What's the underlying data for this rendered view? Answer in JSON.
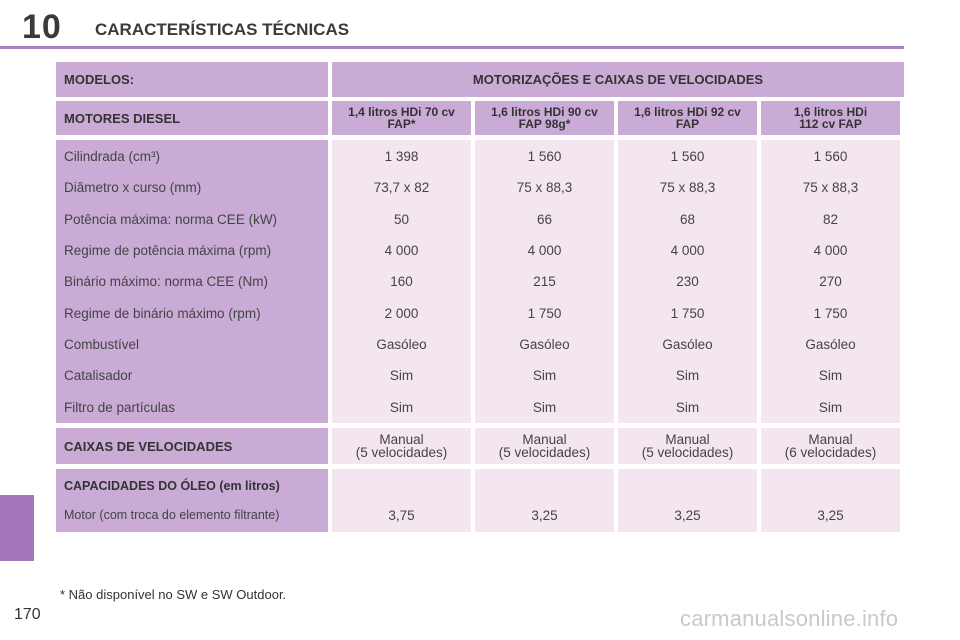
{
  "header": {
    "chapter_number": "10",
    "title": "CARACTERÍSTICAS TÉCNICAS"
  },
  "table": {
    "models_label": "MODELOS:",
    "models_span": "MOTORIZAÇÕES E CAIXAS DE VELOCIDADES",
    "diesel_label": "MOTORES DIESEL",
    "engines": [
      {
        "line1": "1,4 litros HDi 70 cv",
        "line2": "FAP*"
      },
      {
        "line1": "1,6 litros HDi 90 cv",
        "line2": "FAP 98g*"
      },
      {
        "line1": "1,6 litros HDi 92 cv",
        "line2": "FAP"
      },
      {
        "line1": "1,6 litros HDi",
        "line2": "112 cv FAP"
      }
    ],
    "specs": [
      {
        "label": "Cilindrada (cm³)",
        "values": [
          "1 398",
          "1 560",
          "1 560",
          "1 560"
        ]
      },
      {
        "label": "Diâmetro x curso (mm)",
        "values": [
          "73,7 x 82",
          "75 x 88,3",
          "75 x 88,3",
          "75 x 88,3"
        ]
      },
      {
        "label": "Potência máxima: norma CEE (kW)",
        "values": [
          "50",
          "66",
          "68",
          "82"
        ]
      },
      {
        "label": "Regime de potência máxima (rpm)",
        "values": [
          "4 000",
          "4 000",
          "4 000",
          "4 000"
        ]
      },
      {
        "label": "Binário máximo: norma CEE (Nm)",
        "values": [
          "160",
          "215",
          "230",
          "270"
        ]
      },
      {
        "label": "Regime de binário máximo (rpm)",
        "values": [
          "2 000",
          "1 750",
          "1 750",
          "1 750"
        ]
      },
      {
        "label": "Combustível",
        "values": [
          "Gasóleo",
          "Gasóleo",
          "Gasóleo",
          "Gasóleo"
        ]
      },
      {
        "label": "Catalisador",
        "values": [
          "Sim",
          "Sim",
          "Sim",
          "Sim"
        ]
      },
      {
        "label": "Filtro de partículas",
        "values": [
          "Sim",
          "Sim",
          "Sim",
          "Sim"
        ]
      }
    ],
    "gearbox_label": "CAIXAS DE VELOCIDADES",
    "gearboxes": [
      {
        "line1": "Manual",
        "line2": "(5 velocidades)"
      },
      {
        "line1": "Manual",
        "line2": "(5 velocidades)"
      },
      {
        "line1": "Manual",
        "line2": "(5 velocidades)"
      },
      {
        "line1": "Manual",
        "line2": "(6 velocidades)"
      }
    ],
    "oil_title": "CAPACIDADES DO ÓLEO (em litros)",
    "oil_sub": "Motor (com troca do elemento filtrante)",
    "oil_values": [
      "3,75",
      "3,25",
      "3,25",
      "3,25"
    ]
  },
  "footnote": "* Não disponível no SW e SW Outdoor.",
  "page_number": "170",
  "watermark": "carmanualsonline.info",
  "colors": {
    "accent": "#a87fc0",
    "header_cell": "#c9abd6",
    "value_cell": "#f3e6f1",
    "side_tab": "#a276b9"
  }
}
